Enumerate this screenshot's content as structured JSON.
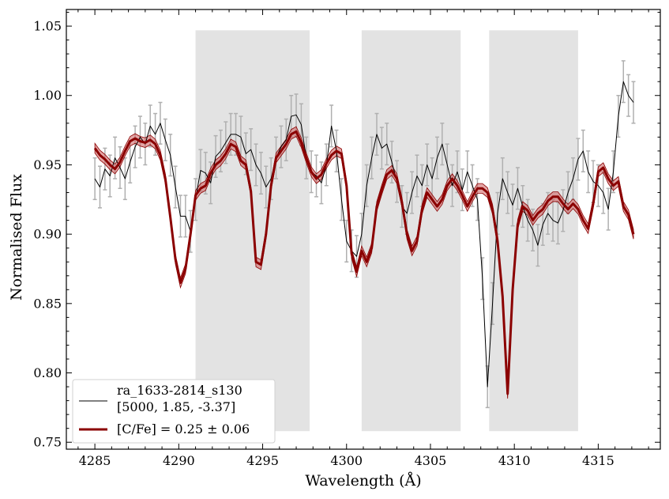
{
  "chart_data": {
    "type": "line",
    "title": "",
    "xlabel": "Wavelength (Å)",
    "ylabel": "Normalised Flux",
    "xlim": [
      4283.3,
      4318.7
    ],
    "ylim": [
      0.745,
      1.062
    ],
    "x_ticks": [
      4285,
      4290,
      4295,
      4300,
      4305,
      4310,
      4315
    ],
    "y_ticks": [
      0.75,
      0.8,
      0.85,
      0.9,
      0.95,
      1.0,
      1.05
    ],
    "y_tick_labels": [
      "0.75",
      "0.80",
      "0.85",
      "0.90",
      "0.95",
      "1.00",
      "1.05"
    ],
    "grid": false,
    "shaded_regions": [
      [
        4291.0,
        4297.8
      ],
      [
        4300.9,
        4306.8
      ],
      [
        4308.5,
        4313.8
      ]
    ],
    "legend": {
      "position": "lower-left",
      "entries": [
        {
          "label_line1": "ra_1633-2814_s130",
          "label_line2": "[5000, 1.85, -3.37]",
          "color": "#000000"
        },
        {
          "label": "[C/Fe] = 0.25 ± 0.06",
          "color": "#8b0000"
        }
      ]
    },
    "series": [
      {
        "name": "ra_1633-2814_s130",
        "color": "#000000",
        "error_color": "#b0b0b0",
        "error": 0.015,
        "x": [
          4285.0,
          4285.3,
          4285.6,
          4285.9,
          4286.2,
          4286.5,
          4286.8,
          4287.1,
          4287.4,
          4287.7,
          4288.0,
          4288.3,
          4288.6,
          4288.9,
          4289.2,
          4289.5,
          4289.8,
          4290.1,
          4290.4,
          4290.7,
          4291.0,
          4291.3,
          4291.6,
          4291.9,
          4292.2,
          4292.5,
          4292.8,
          4293.1,
          4293.4,
          4293.7,
          4294.0,
          4294.3,
          4294.6,
          4294.9,
          4295.2,
          4295.5,
          4295.8,
          4296.1,
          4296.4,
          4296.7,
          4297.0,
          4297.3,
          4297.6,
          4297.9,
          4298.2,
          4298.5,
          4298.8,
          4299.1,
          4299.4,
          4299.7,
          4300.0,
          4300.3,
          4300.6,
          4300.9,
          4301.2,
          4301.5,
          4301.8,
          4302.1,
          4302.4,
          4302.7,
          4303.0,
          4303.3,
          4303.6,
          4303.9,
          4304.2,
          4304.5,
          4304.8,
          4305.1,
          4305.4,
          4305.7,
          4306.0,
          4306.3,
          4306.6,
          4306.9,
          4307.2,
          4307.5,
          4307.8,
          4308.1,
          4308.4,
          4308.7,
          4309.0,
          4309.3,
          4309.6,
          4309.9,
          4310.2,
          4310.5,
          4310.8,
          4311.1,
          4311.4,
          4311.7,
          4312.0,
          4312.3,
          4312.6,
          4312.9,
          4313.2,
          4313.5,
          4313.8,
          4314.1,
          4314.4,
          4314.7,
          4315.0,
          4315.3,
          4315.6,
          4315.9,
          4316.2,
          4316.5,
          4316.8,
          4317.1
        ],
        "y": [
          0.94,
          0.934,
          0.947,
          0.942,
          0.955,
          0.948,
          0.94,
          0.952,
          0.963,
          0.97,
          0.965,
          0.978,
          0.972,
          0.98,
          0.968,
          0.957,
          0.934,
          0.913,
          0.913,
          0.902,
          0.925,
          0.946,
          0.944,
          0.937,
          0.956,
          0.96,
          0.966,
          0.972,
          0.972,
          0.97,
          0.958,
          0.961,
          0.95,
          0.944,
          0.934,
          0.94,
          0.955,
          0.963,
          0.968,
          0.985,
          0.986,
          0.979,
          0.955,
          0.945,
          0.942,
          0.937,
          0.95,
          0.978,
          0.96,
          0.925,
          0.895,
          0.888,
          0.884,
          0.9,
          0.935,
          0.955,
          0.972,
          0.962,
          0.965,
          0.952,
          0.938,
          0.92,
          0.915,
          0.93,
          0.942,
          0.935,
          0.95,
          0.94,
          0.955,
          0.965,
          0.95,
          0.935,
          0.945,
          0.932,
          0.945,
          0.935,
          0.925,
          0.868,
          0.79,
          0.85,
          0.915,
          0.94,
          0.93,
          0.921,
          0.933,
          0.92,
          0.91,
          0.903,
          0.892,
          0.907,
          0.915,
          0.91,
          0.908,
          0.917,
          0.93,
          0.94,
          0.954,
          0.96,
          0.945,
          0.938,
          0.935,
          0.93,
          0.918,
          0.945,
          0.985,
          1.01,
          1.0,
          0.995
        ]
      },
      {
        "name": "[C/Fe] = 0.25 ± 0.06",
        "color": "#8b0000",
        "band_color": "#cd5c5c",
        "x": [
          4285.0,
          4285.3,
          4285.6,
          4285.9,
          4286.2,
          4286.5,
          4286.8,
          4287.1,
          4287.4,
          4287.7,
          4288.0,
          4288.3,
          4288.6,
          4288.9,
          4289.2,
          4289.5,
          4289.8,
          4290.1,
          4290.4,
          4290.7,
          4291.0,
          4291.3,
          4291.6,
          4291.9,
          4292.2,
          4292.5,
          4292.8,
          4293.1,
          4293.4,
          4293.7,
          4294.0,
          4294.3,
          4294.6,
          4294.9,
          4295.2,
          4295.5,
          4295.8,
          4296.1,
          4296.4,
          4296.7,
          4297.0,
          4297.3,
          4297.6,
          4297.9,
          4298.2,
          4298.5,
          4298.8,
          4299.1,
          4299.4,
          4299.7,
          4300.0,
          4300.3,
          4300.6,
          4300.9,
          4301.2,
          4301.5,
          4301.8,
          4302.1,
          4302.4,
          4302.7,
          4303.0,
          4303.3,
          4303.6,
          4303.9,
          4304.2,
          4304.5,
          4304.8,
          4305.1,
          4305.4,
          4305.7,
          4306.0,
          4306.3,
          4306.6,
          4306.9,
          4307.2,
          4307.5,
          4307.8,
          4308.1,
          4308.4,
          4308.7,
          4309.0,
          4309.3,
          4309.6,
          4309.9,
          4310.2,
          4310.5,
          4310.8,
          4311.1,
          4311.4,
          4311.7,
          4312.0,
          4312.3,
          4312.6,
          4312.9,
          4313.2,
          4313.5,
          4313.8,
          4314.1,
          4314.4,
          4314.7,
          4315.0,
          4315.3,
          4315.6,
          4315.9,
          4316.2,
          4316.5,
          4316.8,
          4317.1
        ],
        "y": [
          0.962,
          0.957,
          0.954,
          0.95,
          0.947,
          0.952,
          0.96,
          0.967,
          0.969,
          0.967,
          0.966,
          0.968,
          0.965,
          0.957,
          0.94,
          0.912,
          0.882,
          0.865,
          0.875,
          0.9,
          0.928,
          0.933,
          0.935,
          0.944,
          0.95,
          0.953,
          0.958,
          0.965,
          0.963,
          0.953,
          0.95,
          0.931,
          0.88,
          0.878,
          0.9,
          0.935,
          0.955,
          0.96,
          0.965,
          0.972,
          0.974,
          0.966,
          0.955,
          0.945,
          0.94,
          0.943,
          0.951,
          0.957,
          0.96,
          0.958,
          0.935,
          0.886,
          0.873,
          0.888,
          0.88,
          0.89,
          0.92,
          0.932,
          0.943,
          0.946,
          0.94,
          0.923,
          0.9,
          0.888,
          0.895,
          0.918,
          0.93,
          0.925,
          0.92,
          0.925,
          0.935,
          0.94,
          0.935,
          0.928,
          0.92,
          0.927,
          0.933,
          0.933,
          0.93,
          0.918,
          0.895,
          0.855,
          0.785,
          0.86,
          0.907,
          0.92,
          0.917,
          0.91,
          0.915,
          0.918,
          0.924,
          0.927,
          0.927,
          0.922,
          0.918,
          0.922,
          0.918,
          0.91,
          0.904,
          0.922,
          0.945,
          0.948,
          0.94,
          0.935,
          0.938,
          0.92,
          0.914,
          0.9
        ]
      }
    ]
  }
}
